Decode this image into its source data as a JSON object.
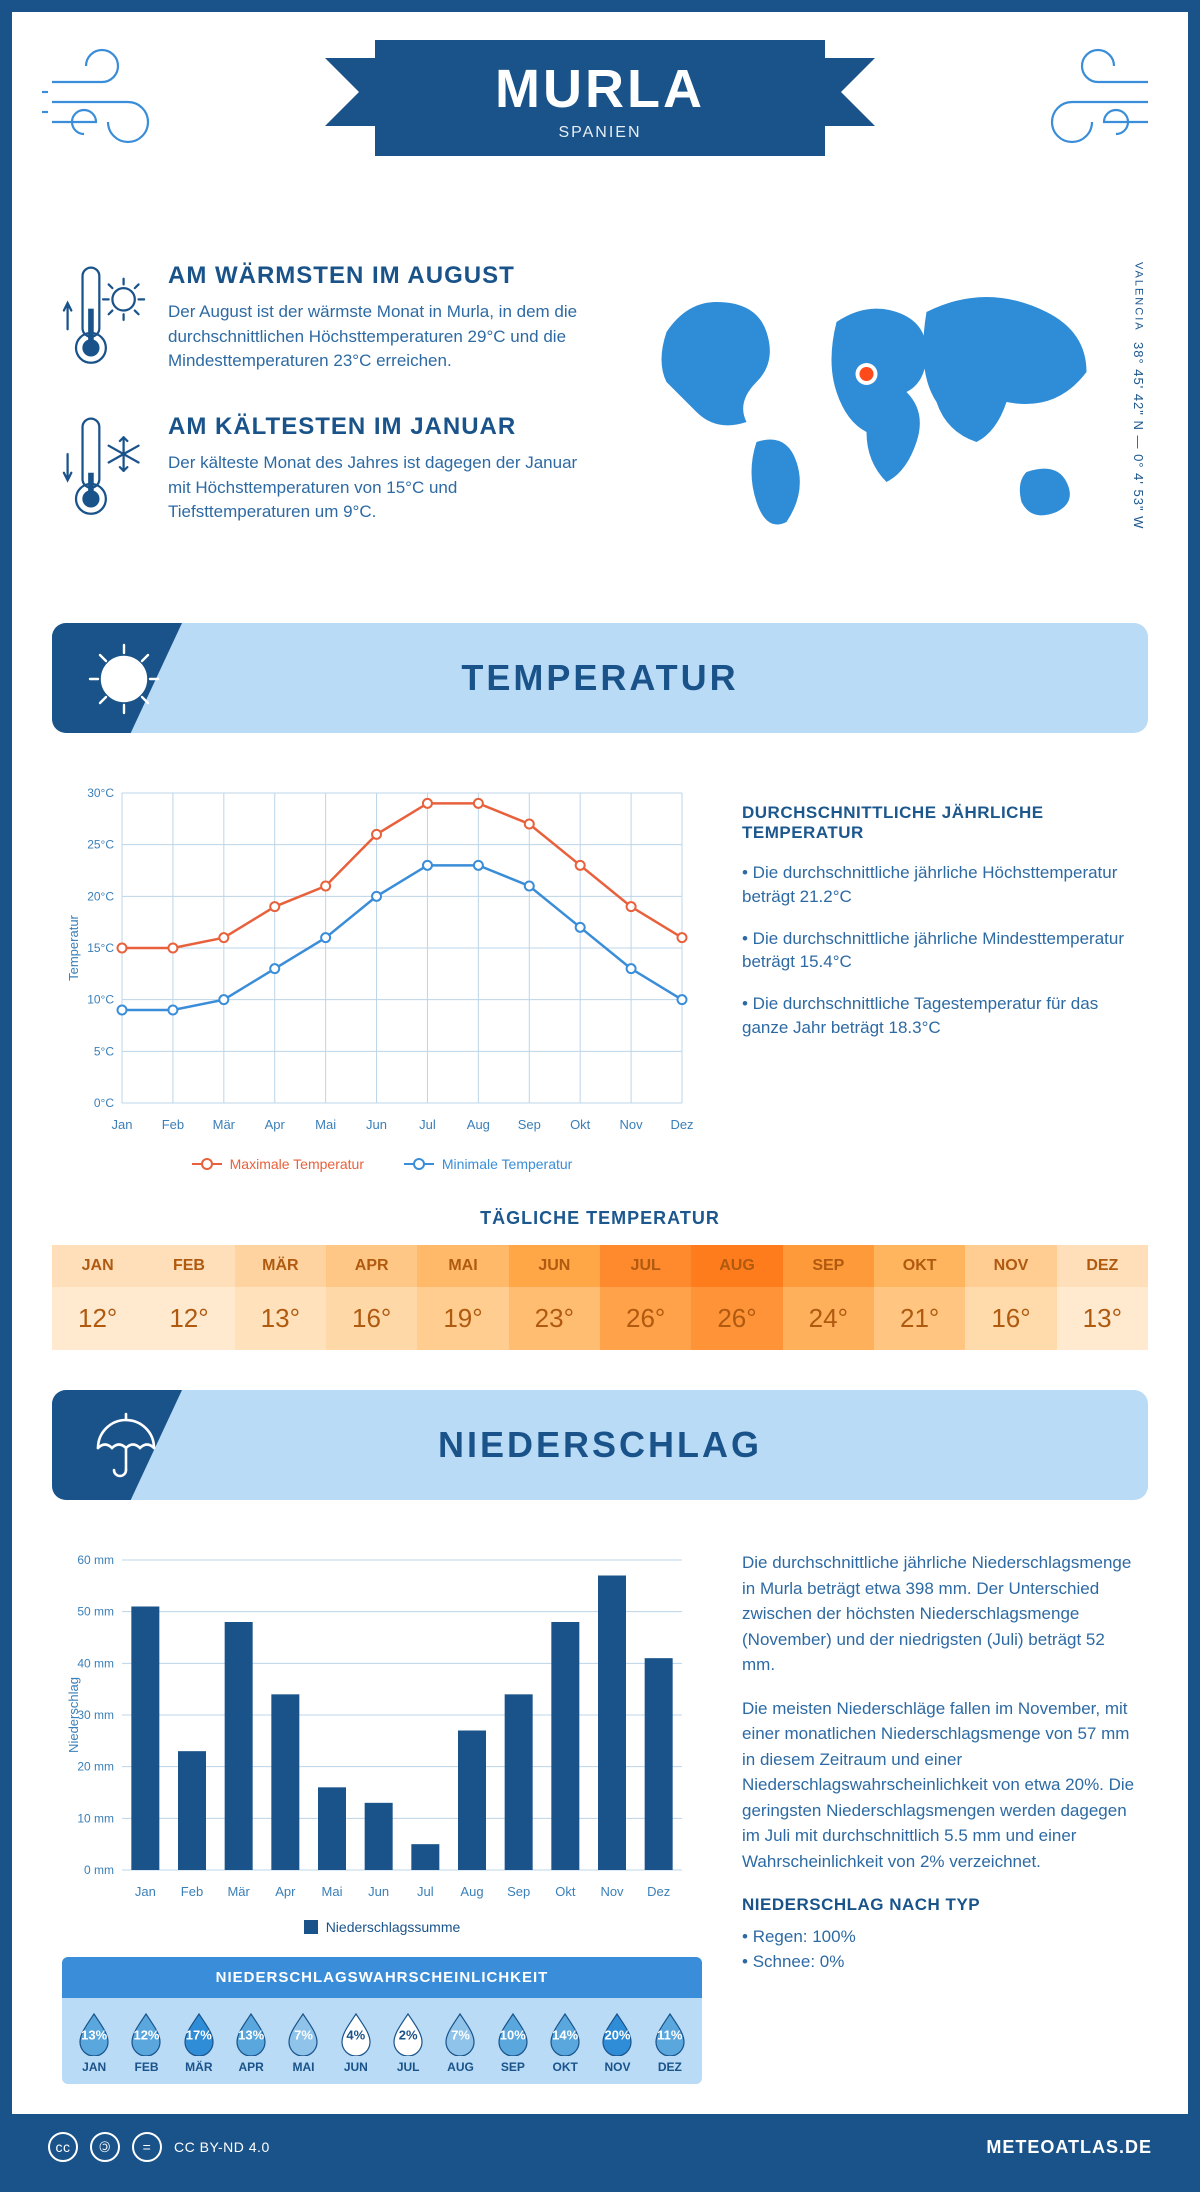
{
  "header": {
    "city": "MURLA",
    "country": "SPANIEN"
  },
  "gps": {
    "coords": "38° 45' 42\" N — 0° 4' 53\" W",
    "region": "VALENCIA"
  },
  "highlights": {
    "warm": {
      "title": "AM WÄRMSTEN IM AUGUST",
      "body": "Der August ist der wärmste Monat in Murla, in dem die durchschnittlichen Höchsttemperaturen 29°C und die Mindesttemperaturen 23°C erreichen."
    },
    "cold": {
      "title": "AM KÄLTESTEN IM JANUAR",
      "body": "Der kälteste Monat des Jahres ist dagegen der Januar mit Höchsttemperaturen von 15°C und Tiefsttemperaturen um 9°C."
    }
  },
  "sections": {
    "temperature": "TEMPERATUR",
    "precip": "NIEDERSCHLAG"
  },
  "tempChart": {
    "months": [
      "Jan",
      "Feb",
      "Mär",
      "Apr",
      "Mai",
      "Jun",
      "Jul",
      "Aug",
      "Sep",
      "Okt",
      "Nov",
      "Dez"
    ],
    "max": [
      15,
      15,
      16,
      19,
      21,
      26,
      29,
      29,
      27,
      23,
      19,
      16
    ],
    "min": [
      9,
      9,
      10,
      13,
      16,
      20,
      23,
      23,
      21,
      17,
      13,
      10
    ],
    "ylim": [
      0,
      30
    ],
    "ytick_step": 5,
    "axis_label": "Temperatur",
    "colors": {
      "max": "#e8613c",
      "min": "#3a8dd8",
      "grid": "#bcd5e8",
      "text": "#3a7fb8"
    },
    "legend": {
      "max": "Maximale Temperatur",
      "min": "Minimale Temperatur"
    }
  },
  "tempInfo": {
    "heading": "DURCHSCHNITTLICHE JÄHRLICHE TEMPERATUR",
    "bullets": [
      "Die durchschnittliche jährliche Höchsttemperatur beträgt 21.2°C",
      "Die durchschnittliche jährliche Mindesttemperatur beträgt 15.4°C",
      "Die durchschnittliche Tagestemperatur für das ganze Jahr beträgt 18.3°C"
    ]
  },
  "dailyTemp": {
    "heading": "TÄGLICHE TEMPERATUR",
    "months": [
      "JAN",
      "FEB",
      "MÄR",
      "APR",
      "MAI",
      "JUN",
      "JUL",
      "AUG",
      "SEP",
      "OKT",
      "NOV",
      "DEZ"
    ],
    "values": [
      "12°",
      "12°",
      "13°",
      "16°",
      "19°",
      "23°",
      "26°",
      "26°",
      "24°",
      "21°",
      "16°",
      "13°"
    ],
    "header_colors": [
      "#ffdfb9",
      "#ffdfb9",
      "#ffd3a0",
      "#ffc786",
      "#ffb968",
      "#ffa647",
      "#ff8a2e",
      "#ff7c1d",
      "#ff9a3b",
      "#ffb45e",
      "#ffcc91",
      "#ffdfb9"
    ],
    "value_colors": [
      "#ffe9cf",
      "#ffe9cf",
      "#ffe1bc",
      "#ffd8a8",
      "#ffcd8f",
      "#ffbd72",
      "#ffa24a",
      "#ff9338",
      "#ffb05b",
      "#ffc581",
      "#ffdaaa",
      "#ffe9cf"
    ],
    "text_color": "#b05a10"
  },
  "precipChart": {
    "months": [
      "Jan",
      "Feb",
      "Mär",
      "Apr",
      "Mai",
      "Jun",
      "Jul",
      "Aug",
      "Sep",
      "Okt",
      "Nov",
      "Dez"
    ],
    "values": [
      51,
      23,
      48,
      34,
      16,
      13,
      5,
      27,
      34,
      48,
      57,
      41
    ],
    "ylim": [
      0,
      60
    ],
    "ytick_step": 10,
    "axis_label": "Niederschlag",
    "bar_color": "#19538a",
    "grid": "#bcd5e8",
    "legend": "Niederschlagssumme"
  },
  "precipText": {
    "p1": "Die durchschnittliche jährliche Niederschlagsmenge in Murla beträgt etwa 398 mm. Der Unterschied zwischen der höchsten Niederschlagsmenge (November) und der niedrigsten (Juli) beträgt 52 mm.",
    "p2": "Die meisten Niederschläge fallen im November, mit einer monatlichen Niederschlagsmenge von 57 mm in diesem Zeitraum und einer Niederschlagswahrscheinlichkeit von etwa 20%. Die geringsten Niederschlagsmengen werden dagegen im Juli mit durchschnittlich 5.5 mm und einer Wahrscheinlichkeit von 2% verzeichnet.",
    "type_h": "NIEDERSCHLAG NACH TYP",
    "rain": "Regen: 100%",
    "snow": "Schnee: 0%"
  },
  "prob": {
    "title": "NIEDERSCHLAGSWAHRSCHEINLICHKEIT",
    "months": [
      "JAN",
      "FEB",
      "MÄR",
      "APR",
      "MAI",
      "JUN",
      "JUL",
      "AUG",
      "SEP",
      "OKT",
      "NOV",
      "DEZ"
    ],
    "values": [
      "13%",
      "12%",
      "17%",
      "13%",
      "7%",
      "4%",
      "2%",
      "7%",
      "10%",
      "14%",
      "20%",
      "11%"
    ],
    "raw": [
      13,
      12,
      17,
      13,
      7,
      4,
      2,
      7,
      10,
      14,
      20,
      11
    ]
  },
  "footer": {
    "license": "CC BY-ND 4.0",
    "site": "METEOATLAS.DE"
  }
}
